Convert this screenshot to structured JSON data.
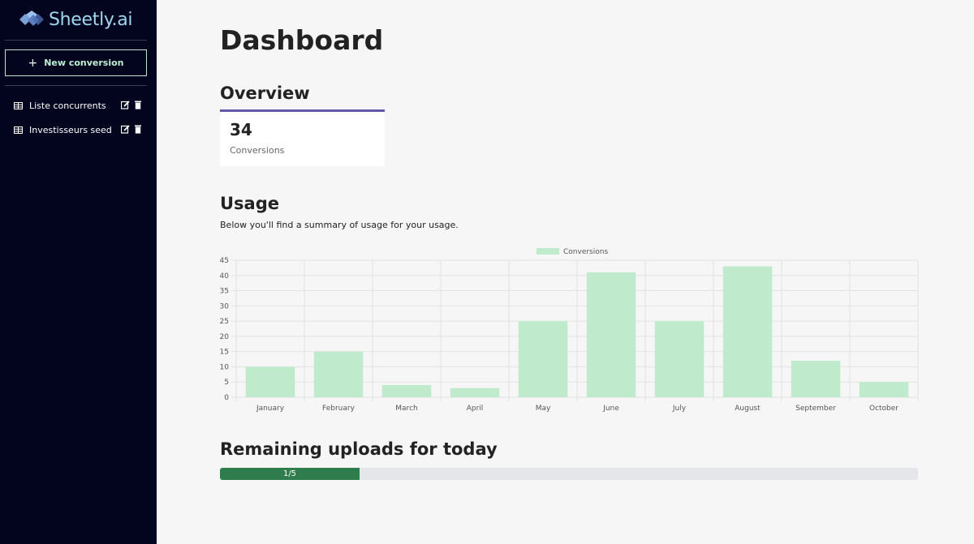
{
  "app": {
    "brand": "Sheetly.ai"
  },
  "sidebar": {
    "new_button": "New conversion",
    "items": [
      {
        "label": "Liste concurrents",
        "icon": "table-icon"
      },
      {
        "label": "Investisseurs seed",
        "icon": "table-icon"
      }
    ]
  },
  "main": {
    "title": "Dashboard",
    "overview": {
      "heading": "Overview",
      "count": "34",
      "count_label": "Conversions"
    },
    "usage": {
      "heading": "Usage",
      "description": "Below you'll find a summary of usage for your usage."
    },
    "remaining": {
      "heading": "Remaining uploads for today",
      "label": "1/5",
      "used": 1,
      "total": 5
    }
  },
  "colors": {
    "sidebar_bg": "#03051f",
    "bar_fill": "#bfeacb",
    "progress_fill": "#2f7d4d",
    "card_accent": "#5f58a8"
  },
  "chart_data": {
    "type": "bar",
    "categories": [
      "January",
      "February",
      "March",
      "April",
      "May",
      "June",
      "July",
      "August",
      "September",
      "October"
    ],
    "series": [
      {
        "name": "Conversions",
        "values": [
          10,
          15,
          4,
          3,
          25,
          41,
          25,
          43,
          12,
          5
        ]
      }
    ],
    "ylim": [
      0,
      45
    ],
    "yticks": [
      0,
      5,
      10,
      15,
      20,
      25,
      30,
      35,
      40,
      45
    ],
    "grid": true,
    "legend": "top-center"
  }
}
